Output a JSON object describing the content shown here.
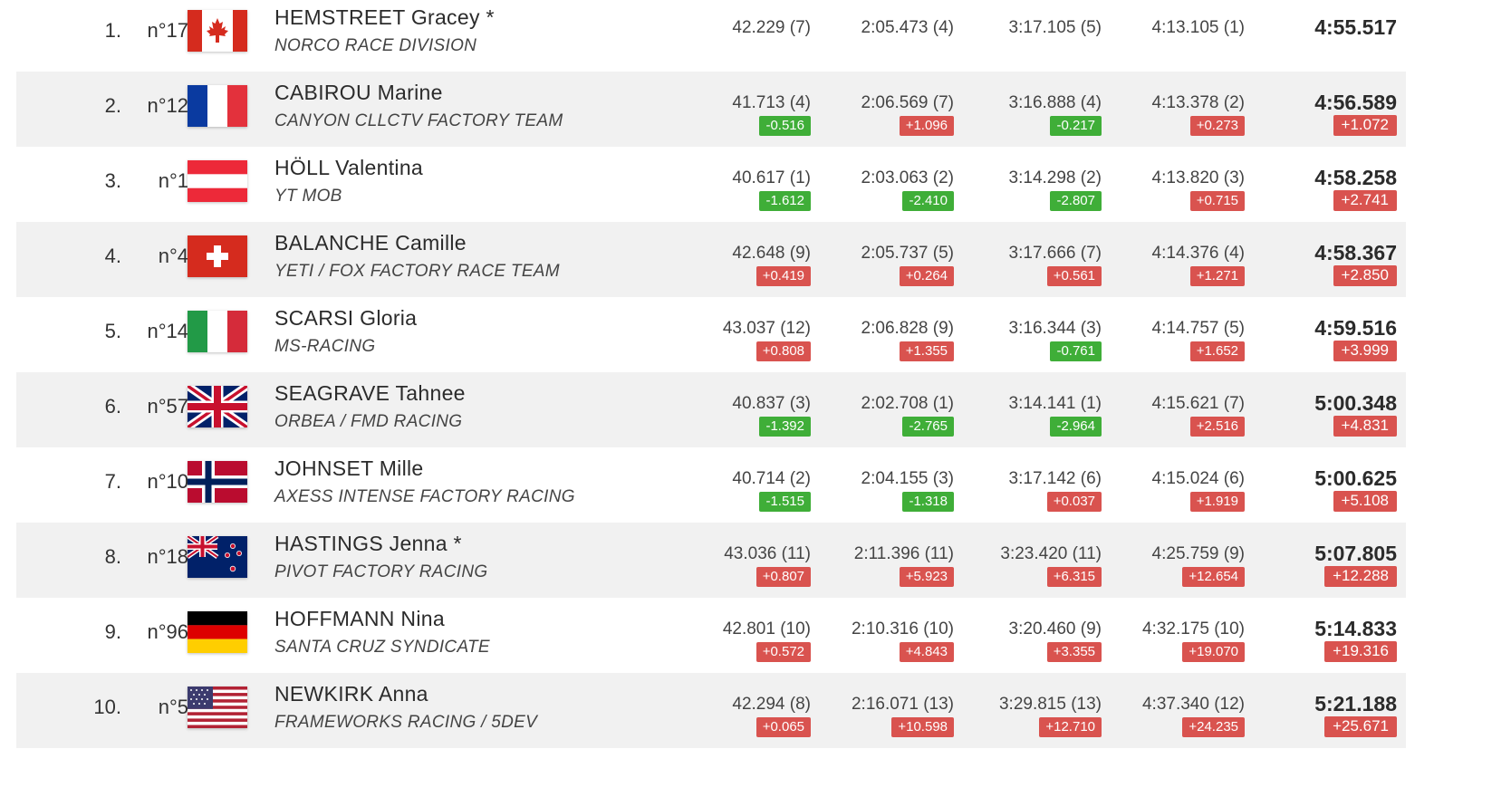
{
  "riders": [
    {
      "rank": "1.",
      "bib": "n°17",
      "name": "HEMSTREET Gracey *",
      "team": "NORCO RACE DIVISION",
      "flag": "canada-flag",
      "splits": [
        {
          "t": "42.229 (7)",
          "d": "",
          "k": ""
        },
        {
          "t": "2:05.473 (4)",
          "d": "",
          "k": ""
        },
        {
          "t": "3:17.105 (5)",
          "d": "",
          "k": ""
        },
        {
          "t": "4:13.105 (1)",
          "d": "",
          "k": ""
        }
      ],
      "final": {
        "t": "4:55.517",
        "d": ""
      }
    },
    {
      "rank": "2.",
      "bib": "n°12",
      "name": "CABIROU Marine",
      "team": "CANYON CLLCTV FACTORY TEAM",
      "flag": "france-flag",
      "splits": [
        {
          "t": "41.713 (4)",
          "d": "-0.516",
          "k": "neg"
        },
        {
          "t": "2:06.569 (7)",
          "d": "+1.096",
          "k": "pos"
        },
        {
          "t": "3:16.888 (4)",
          "d": "-0.217",
          "k": "neg"
        },
        {
          "t": "4:13.378 (2)",
          "d": "+0.273",
          "k": "pos"
        }
      ],
      "final": {
        "t": "4:56.589",
        "d": "+1.072"
      }
    },
    {
      "rank": "3.",
      "bib": "n°1",
      "name": "HÖLL Valentina",
      "team": "YT MOB",
      "flag": "austria-flag",
      "splits": [
        {
          "t": "40.617 (1)",
          "d": "-1.612",
          "k": "neg"
        },
        {
          "t": "2:03.063 (2)",
          "d": "-2.410",
          "k": "neg"
        },
        {
          "t": "3:14.298 (2)",
          "d": "-2.807",
          "k": "neg"
        },
        {
          "t": "4:13.820 (3)",
          "d": "+0.715",
          "k": "pos"
        }
      ],
      "final": {
        "t": "4:58.258",
        "d": "+2.741"
      }
    },
    {
      "rank": "4.",
      "bib": "n°4",
      "name": "BALANCHE Camille",
      "team": "YETI / FOX FACTORY RACE TEAM",
      "flag": "switzerland-flag",
      "splits": [
        {
          "t": "42.648 (9)",
          "d": "+0.419",
          "k": "pos"
        },
        {
          "t": "2:05.737 (5)",
          "d": "+0.264",
          "k": "pos"
        },
        {
          "t": "3:17.666 (7)",
          "d": "+0.561",
          "k": "pos"
        },
        {
          "t": "4:14.376 (4)",
          "d": "+1.271",
          "k": "pos"
        }
      ],
      "final": {
        "t": "4:58.367",
        "d": "+2.850"
      }
    },
    {
      "rank": "5.",
      "bib": "n°14",
      "name": "SCARSI Gloria",
      "team": "MS-RACING",
      "flag": "italy-flag",
      "splits": [
        {
          "t": "43.037 (12)",
          "d": "+0.808",
          "k": "pos"
        },
        {
          "t": "2:06.828 (9)",
          "d": "+1.355",
          "k": "pos"
        },
        {
          "t": "3:16.344 (3)",
          "d": "-0.761",
          "k": "neg"
        },
        {
          "t": "4:14.757 (5)",
          "d": "+1.652",
          "k": "pos"
        }
      ],
      "final": {
        "t": "4:59.516",
        "d": "+3.999"
      }
    },
    {
      "rank": "6.",
      "bib": "n°57",
      "name": "SEAGRAVE Tahnee",
      "team": "ORBEA / FMD RACING",
      "flag": "uk-flag",
      "splits": [
        {
          "t": "40.837 (3)",
          "d": "-1.392",
          "k": "neg"
        },
        {
          "t": "2:02.708 (1)",
          "d": "-2.765",
          "k": "neg"
        },
        {
          "t": "3:14.141 (1)",
          "d": "-2.964",
          "k": "neg"
        },
        {
          "t": "4:15.621 (7)",
          "d": "+2.516",
          "k": "pos"
        }
      ],
      "final": {
        "t": "5:00.348",
        "d": "+4.831"
      }
    },
    {
      "rank": "7.",
      "bib": "n°10",
      "name": "JOHNSET Mille",
      "team": "AXESS INTENSE FACTORY RACING",
      "flag": "norway-flag",
      "splits": [
        {
          "t": "40.714 (2)",
          "d": "-1.515",
          "k": "neg"
        },
        {
          "t": "2:04.155 (3)",
          "d": "-1.318",
          "k": "neg"
        },
        {
          "t": "3:17.142 (6)",
          "d": "+0.037",
          "k": "pos"
        },
        {
          "t": "4:15.024 (6)",
          "d": "+1.919",
          "k": "pos"
        }
      ],
      "final": {
        "t": "5:00.625",
        "d": "+5.108"
      }
    },
    {
      "rank": "8.",
      "bib": "n°18",
      "name": "HASTINGS Jenna *",
      "team": "PIVOT FACTORY RACING",
      "flag": "new-zealand-flag",
      "splits": [
        {
          "t": "43.036 (11)",
          "d": "+0.807",
          "k": "pos"
        },
        {
          "t": "2:11.396 (11)",
          "d": "+5.923",
          "k": "pos"
        },
        {
          "t": "3:23.420 (11)",
          "d": "+6.315",
          "k": "pos"
        },
        {
          "t": "4:25.759 (9)",
          "d": "+12.654",
          "k": "pos"
        }
      ],
      "final": {
        "t": "5:07.805",
        "d": "+12.288"
      }
    },
    {
      "rank": "9.",
      "bib": "n°96",
      "name": "HOFFMANN Nina",
      "team": "SANTA CRUZ SYNDICATE",
      "flag": "germany-flag",
      "splits": [
        {
          "t": "42.801 (10)",
          "d": "+0.572",
          "k": "pos"
        },
        {
          "t": "2:10.316 (10)",
          "d": "+4.843",
          "k": "pos"
        },
        {
          "t": "3:20.460 (9)",
          "d": "+3.355",
          "k": "pos"
        },
        {
          "t": "4:32.175 (10)",
          "d": "+19.070",
          "k": "pos"
        }
      ],
      "final": {
        "t": "5:14.833",
        "d": "+19.316"
      }
    },
    {
      "rank": "10.",
      "bib": "n°5",
      "name": "NEWKIRK Anna",
      "team": "FRAMEWORKS RACING / 5DEV",
      "flag": "usa-flag",
      "splits": [
        {
          "t": "42.294 (8)",
          "d": "+0.065",
          "k": "pos"
        },
        {
          "t": "2:16.071 (13)",
          "d": "+10.598",
          "k": "pos"
        },
        {
          "t": "3:29.815 (13)",
          "d": "+12.710",
          "k": "pos"
        },
        {
          "t": "4:37.340 (12)",
          "d": "+24.235",
          "k": "pos"
        }
      ],
      "final": {
        "t": "5:21.188",
        "d": "+25.671"
      }
    }
  ]
}
